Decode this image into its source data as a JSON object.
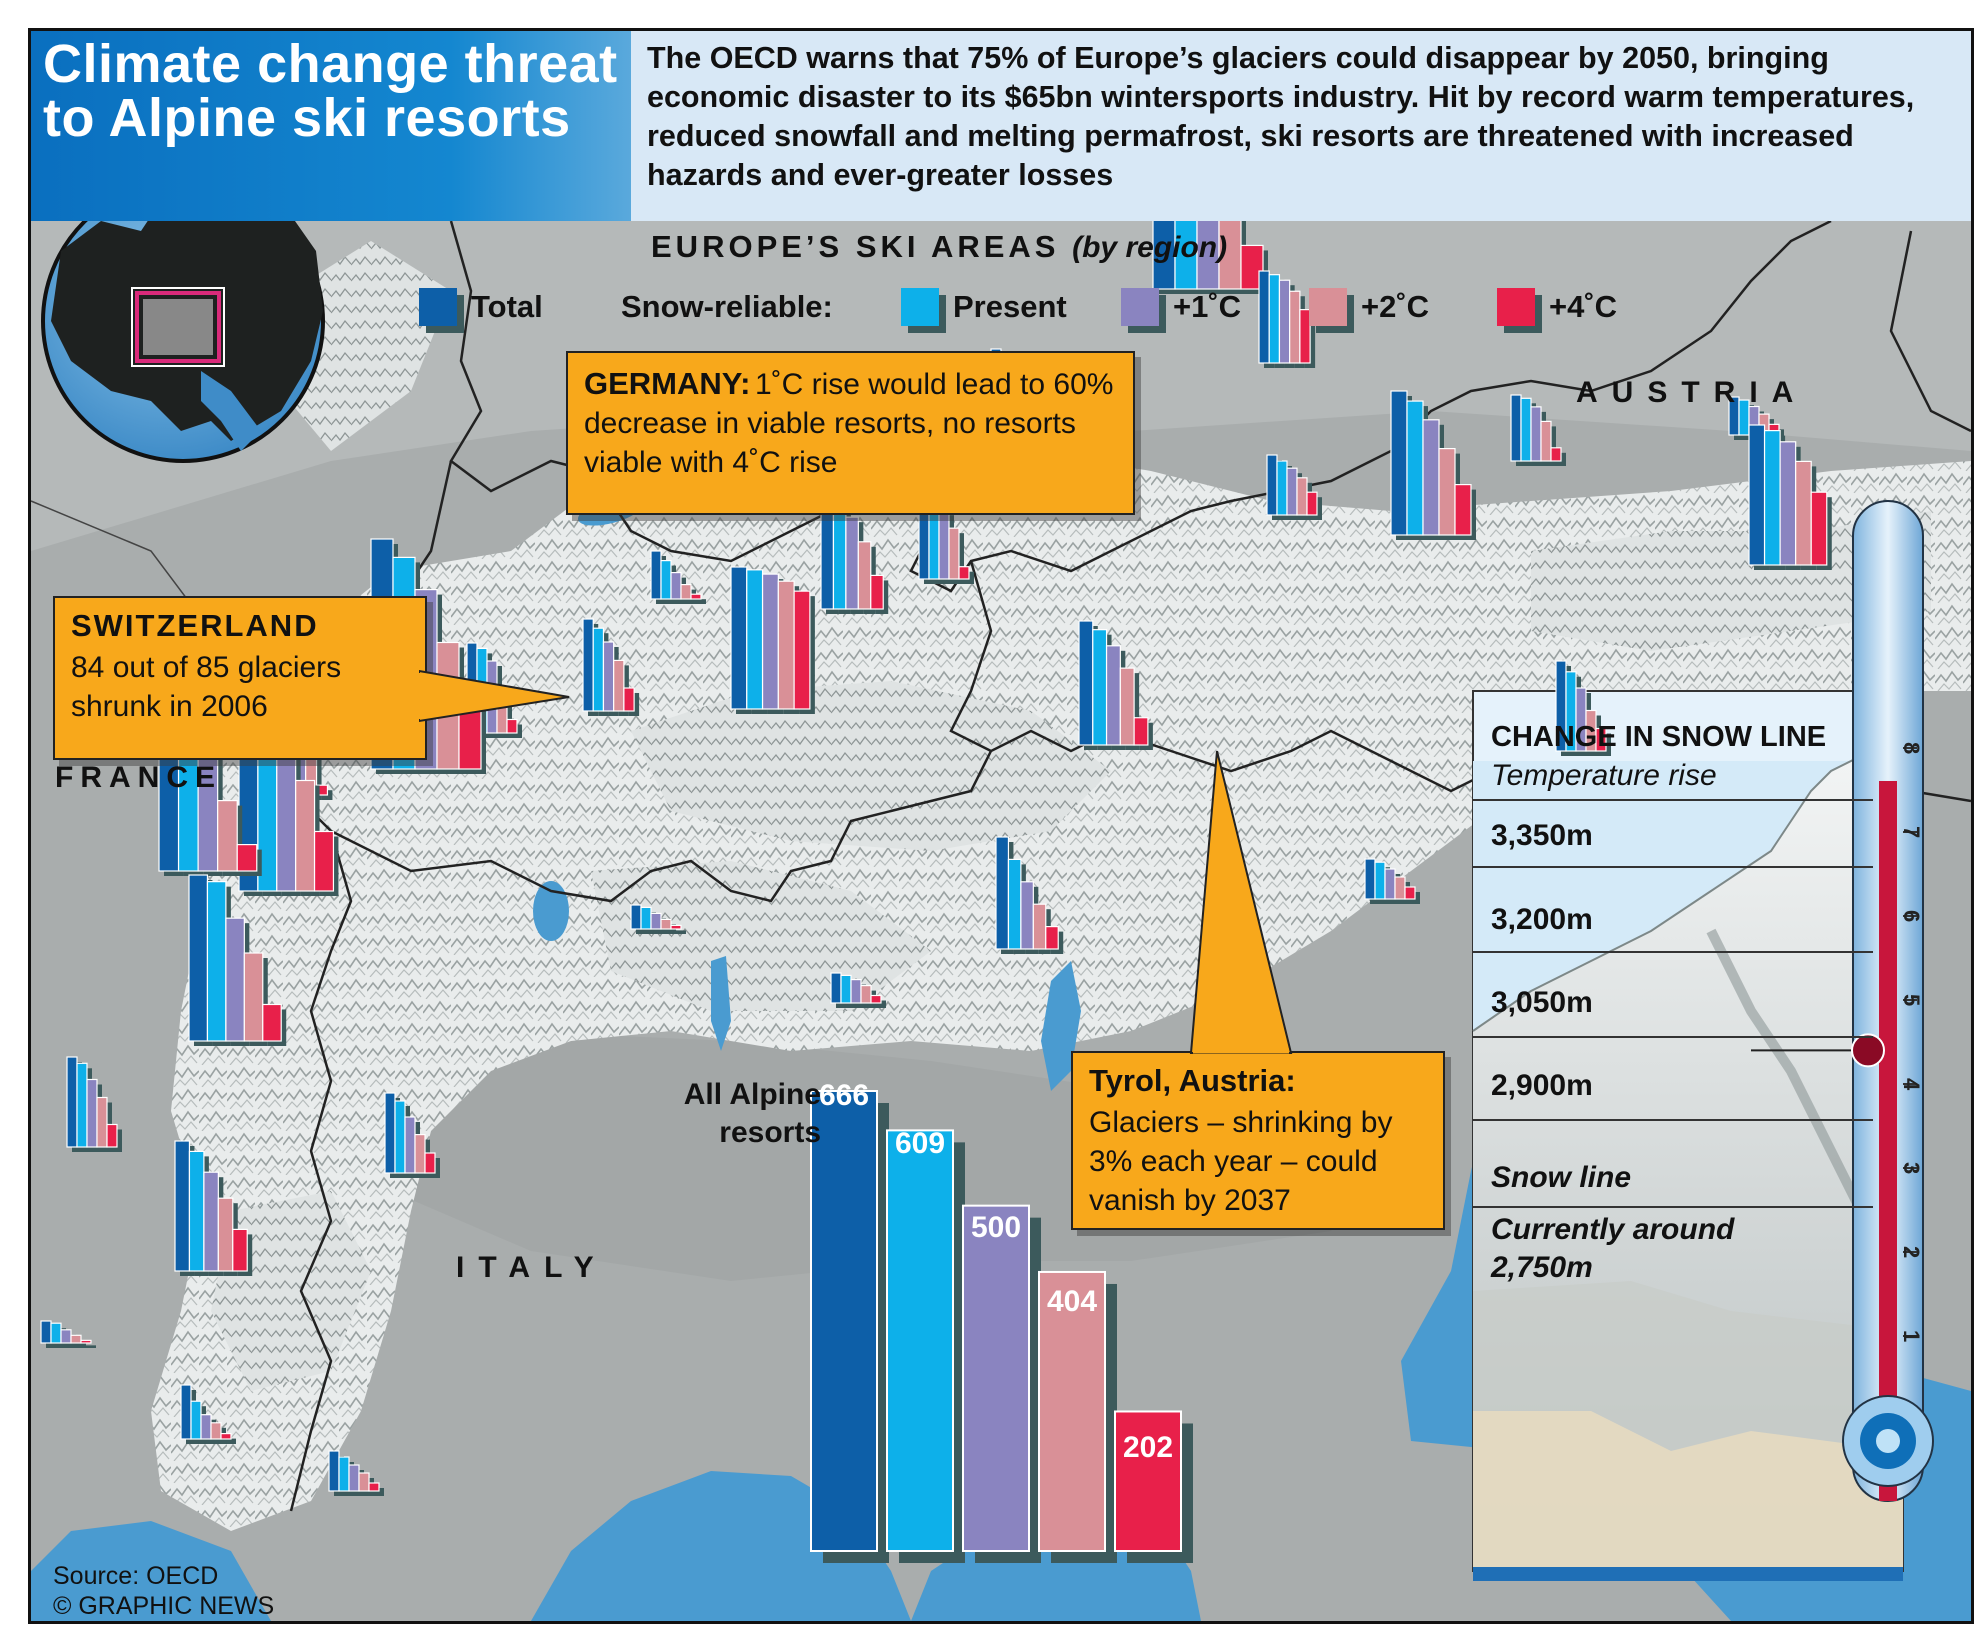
{
  "header": {
    "title": "Climate change threat to Alpine ski resorts",
    "intro": "The OECD warns that 75% of Europe’s glaciers could disappear by 2050, bringing economic disaster to its $65bn wintersports industry. Hit by record warm temperatures, reduced snowfall and melting permafrost, ski resorts are threatened with increased hazards and ever-greater losses"
  },
  "legend": {
    "heading": "EUROPE’S SKI AREAS",
    "heading_note": "(by region)",
    "snow_reliable_label": "Snow-reliable:",
    "items": [
      {
        "label": "Total",
        "color": "#0d5fa8"
      },
      {
        "label": "Present",
        "color": "#0db0ea"
      },
      {
        "label": "+1˚C",
        "color": "#8a84c0"
      },
      {
        "label": "+2˚C",
        "color": "#d99097"
      },
      {
        "label": "+4˚C",
        "color": "#e8204a"
      }
    ]
  },
  "countries": {
    "austria": "AUSTRIA",
    "france": "FRANCE",
    "italy": "ITALY"
  },
  "callouts": {
    "germany": {
      "title": "GERMANY:",
      "body": "1˚C rise would lead to 60% decrease in viable resorts, no resorts viable with 4˚C rise"
    },
    "switzerland": {
      "title": "SWITZERLAND",
      "body": "84 out of 85 glaciers shrunk in 2006"
    },
    "tyrol": {
      "title": "Tyrol, Austria:",
      "body": "Glaciers – shrinking by 3% each year – could vanish by 2037"
    }
  },
  "chart_data": {
    "type": "bar",
    "title": "All Alpine resorts",
    "categories": [
      "Total",
      "Present",
      "+1˚C",
      "+2˚C",
      "+4˚C"
    ],
    "values": [
      666,
      609,
      500,
      404,
      202
    ],
    "value_labels": [
      "666",
      "609",
      "500",
      "404",
      "202"
    ],
    "colors": [
      "#0d5fa8",
      "#0db0ea",
      "#8a84c0",
      "#d99097",
      "#e8204a"
    ],
    "ylim": [
      0,
      700
    ]
  },
  "regional_bars": [
    {
      "values": [
        100,
        92,
        72,
        42,
        18
      ]
    },
    {
      "values": [
        100,
        96,
        90,
        78,
        58
      ]
    },
    {
      "values": [
        100,
        95,
        82,
        60,
        20
      ]
    },
    {
      "values": [
        100,
        93,
        80,
        60,
        35
      ]
    },
    {
      "values": [
        100,
        90,
        78,
        62,
        38
      ]
    },
    {
      "values": [
        100,
        92,
        75,
        55,
        28
      ]
    },
    {
      "values": [
        100,
        96,
        88,
        74,
        52
      ]
    },
    {
      "values": [
        100,
        95,
        84,
        62,
        15
      ]
    },
    {
      "values": [
        100,
        94,
        82,
        60,
        30
      ]
    },
    {
      "values": [
        100,
        96,
        92,
        84,
        68
      ]
    },
    {
      "values": [
        100,
        98,
        95,
        90,
        83
      ]
    },
    {
      "values": [
        100,
        93,
        80,
        62,
        22
      ]
    },
    {
      "values": [
        100,
        90,
        75,
        55,
        25
      ]
    },
    {
      "values": [
        100,
        94,
        80,
        50,
        15
      ]
    },
    {
      "values": [
        100,
        92,
        78,
        55,
        30
      ]
    },
    {
      "values": [
        100,
        88,
        70,
        45,
        10
      ]
    },
    {
      "values": [
        100,
        95,
        84,
        65,
        35
      ]
    },
    {
      "values": [
        100,
        92,
        68,
        40,
        15
      ]
    },
    {
      "values": [
        100,
        93,
        75,
        55,
        25
      ]
    },
    {
      "values": [
        100,
        96,
        74,
        53,
        22
      ]
    },
    {
      "values": [
        100,
        90,
        70,
        48,
        25
      ]
    },
    {
      "values": [
        100,
        92,
        76,
        56,
        32
      ]
    },
    {
      "values": [
        100,
        90,
        60,
        35,
        12
      ]
    },
    {
      "values": [
        100,
        90,
        65,
        40,
        15
      ]
    },
    {
      "values": [
        100,
        92,
        78,
        58,
        25
      ]
    },
    {
      "values": [
        100,
        80,
        60,
        40,
        20
      ]
    },
    {
      "values": [
        100,
        88,
        70,
        45,
        25
      ]
    },
    {
      "values": [
        100,
        92,
        75,
        55,
        30
      ]
    },
    {
      "values": [
        100,
        70,
        45,
        30,
        10
      ]
    },
    {
      "values": [
        100,
        85,
        65,
        45,
        20
      ]
    },
    {
      "values": [
        100,
        80,
        55,
        30,
        10
      ]
    }
  ],
  "snow_line": {
    "heading": "CHANGE IN SNOW LINE",
    "subheading": "Temperature rise",
    "levels": [
      "3,350m",
      "3,200m",
      "3,050m",
      "2,900m"
    ],
    "snow_line_label": "Snow line",
    "current_label": "Currently around",
    "current_value": "2,750m"
  },
  "thermometer": {
    "ticks": [
      "1",
      "2",
      "3",
      "4",
      "5",
      "6",
      "7",
      "8"
    ],
    "reading": 4.4
  },
  "source": {
    "line1": "Source: OECD",
    "line2": "© GRAPHIC NEWS"
  }
}
